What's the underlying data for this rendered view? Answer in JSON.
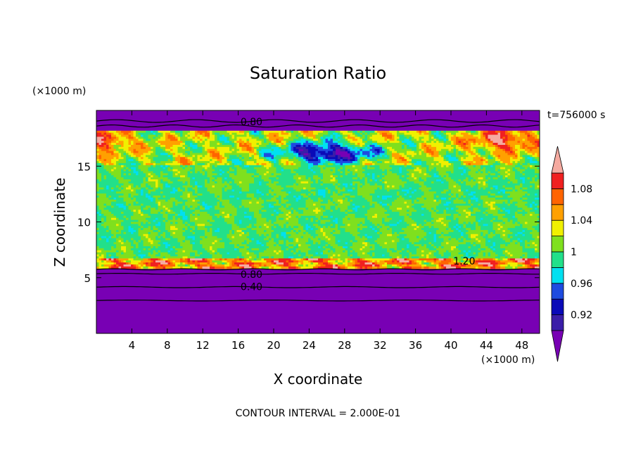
{
  "chart_data": {
    "type": "heatmap",
    "title": "Saturation Ratio",
    "xlabel": "X coordinate",
    "ylabel": "Z coordinate",
    "x_unit": "(×1000 m)",
    "y_unit": "(×1000 m)",
    "time_label": "t=756000 s",
    "footer": "CONTOUR INTERVAL = 2.000E-01",
    "xlim": [
      0,
      50
    ],
    "ylim": [
      0,
      20
    ],
    "x_ticks": [
      4,
      8,
      12,
      16,
      20,
      24,
      28,
      32,
      36,
      40,
      44,
      48
    ],
    "x_tick_labels": [
      "4",
      "8",
      "12",
      "16",
      "20",
      "24",
      "28",
      "32",
      "36",
      "40",
      "44",
      "48"
    ],
    "y_ticks": [
      5,
      10,
      15
    ],
    "y_tick_labels": [
      "5",
      "10",
      "15"
    ],
    "colorbar": {
      "levels": [
        0.9,
        0.92,
        0.94,
        0.96,
        0.98,
        1.0,
        1.02,
        1.04,
        1.06,
        1.08,
        1.1
      ],
      "labels": [
        "0.92",
        "0.96",
        "1",
        "1.04",
        "1.08"
      ],
      "label_values": [
        0.92,
        0.96,
        1.0,
        1.04,
        1.08
      ],
      "colors": [
        "#3a1ea8",
        "#0a0ab8",
        "#1e4be0",
        "#00e0f0",
        "#22e08a",
        "#7fe01e",
        "#f0f000",
        "#ffa000",
        "#ff6400",
        "#f02020"
      ],
      "under_color": "#7800b4",
      "over_color": "#f5aaa0"
    },
    "contour_labels": [
      {
        "text": "0.80",
        "x": 17.5,
        "z": 19.0
      },
      {
        "text": "0.80",
        "x": 17.5,
        "z": 5.3
      },
      {
        "text": "0.40",
        "x": 17.5,
        "z": 4.2
      },
      {
        "text": "1.20",
        "x": 41.5,
        "z": 6.5
      }
    ],
    "regions": {
      "top_dry_layer_base_z": 18.2,
      "moist_layer": [
        6.0,
        18.2
      ],
      "bottom_dry_layer_top_z": 5.9,
      "supersaturated_band_z": [
        5.9,
        6.8
      ],
      "cirrus_band_z": [
        15.0,
        18.2
      ]
    }
  }
}
